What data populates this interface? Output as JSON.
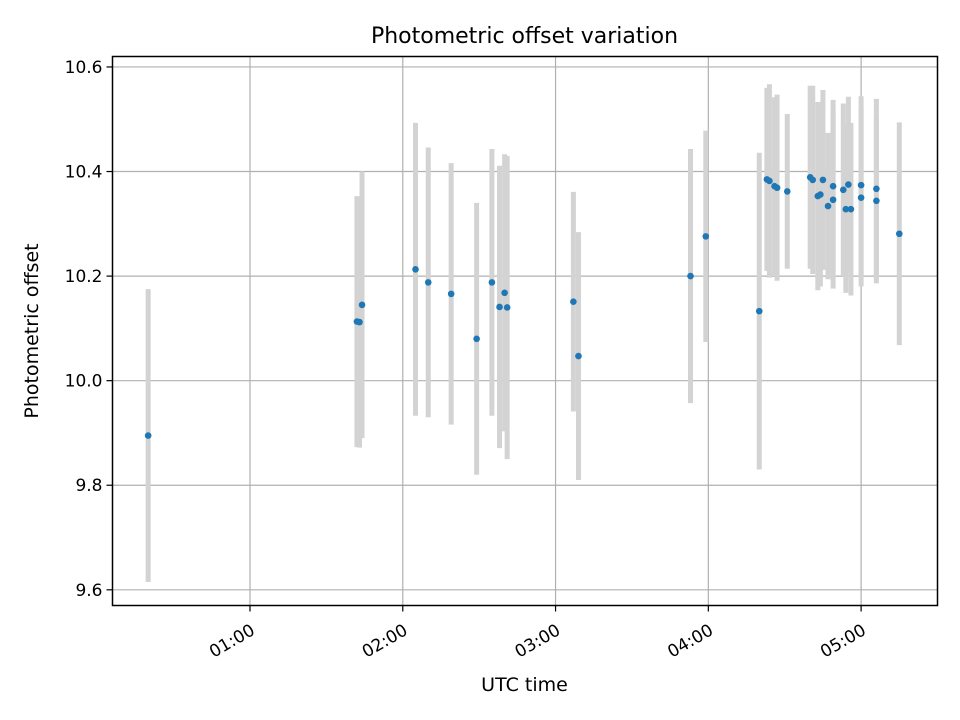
{
  "chart_data": {
    "type": "scatter",
    "title": "Photometric offset variation",
    "xlabel": "UTC time",
    "ylabel": "Photometric offset",
    "xlim": [
      "00:06",
      "05:30"
    ],
    "ylim": [
      9.57,
      10.62
    ],
    "grid": true,
    "x_ticks": [
      "01:00",
      "02:00",
      "03:00",
      "04:00",
      "05:00"
    ],
    "y_ticks": [
      9.6,
      9.8,
      10.0,
      10.2,
      10.4,
      10.6
    ],
    "colors": {
      "points": "#1f77b4",
      "error_bars": "#d3d3d3",
      "grid": "#b0b0b0"
    },
    "series": [
      {
        "points": [
          {
            "x": "00:20",
            "y": 9.895,
            "err": 0.28
          },
          {
            "x": "01:42",
            "y": 10.113,
            "err": 0.24
          },
          {
            "x": "01:43",
            "y": 10.112,
            "err": 0.24
          },
          {
            "x": "01:44",
            "y": 10.145,
            "err": 0.255
          },
          {
            "x": "02:05",
            "y": 10.213,
            "err": 0.28
          },
          {
            "x": "02:10",
            "y": 10.188,
            "err": 0.258
          },
          {
            "x": "02:19",
            "y": 10.166,
            "err": 0.25
          },
          {
            "x": "02:29",
            "y": 10.08,
            "err": 0.26
          },
          {
            "x": "02:35",
            "y": 10.188,
            "err": 0.255
          },
          {
            "x": "02:38",
            "y": 10.141,
            "err": 0.27
          },
          {
            "x": "02:40",
            "y": 10.168,
            "err": 0.265
          },
          {
            "x": "02:41",
            "y": 10.14,
            "err": 0.29
          },
          {
            "x": "03:07",
            "y": 10.151,
            "err": 0.21
          },
          {
            "x": "03:09",
            "y": 10.047,
            "err": 0.237
          },
          {
            "x": "03:53",
            "y": 10.2,
            "err": 0.243
          },
          {
            "x": "03:59",
            "y": 10.276,
            "err": 0.202
          },
          {
            "x": "04:20",
            "y": 10.133,
            "err": 0.303
          },
          {
            "x": "04:23",
            "y": 10.385,
            "err": 0.175
          },
          {
            "x": "04:24",
            "y": 10.382,
            "err": 0.185
          },
          {
            "x": "04:26",
            "y": 10.372,
            "err": 0.17
          },
          {
            "x": "04:27",
            "y": 10.369,
            "err": 0.178
          },
          {
            "x": "04:31",
            "y": 10.362,
            "err": 0.148
          },
          {
            "x": "04:40",
            "y": 10.389,
            "err": 0.175
          },
          {
            "x": "04:41",
            "y": 10.384,
            "err": 0.18
          },
          {
            "x": "04:43",
            "y": 10.353,
            "err": 0.18
          },
          {
            "x": "04:44",
            "y": 10.356,
            "err": 0.176
          },
          {
            "x": "04:45",
            "y": 10.384,
            "err": 0.172
          },
          {
            "x": "04:47",
            "y": 10.334,
            "err": 0.14
          },
          {
            "x": "04:49",
            "y": 10.372,
            "err": 0.165
          },
          {
            "x": "04:49",
            "y": 10.346,
            "err": 0.17
          },
          {
            "x": "04:53",
            "y": 10.365,
            "err": 0.165
          },
          {
            "x": "04:54",
            "y": 10.328,
            "err": 0.16
          },
          {
            "x": "04:55",
            "y": 10.375,
            "err": 0.168
          },
          {
            "x": "04:56",
            "y": 10.328,
            "err": 0.165
          },
          {
            "x": "05:00",
            "y": 10.374,
            "err": 0.17
          },
          {
            "x": "05:00",
            "y": 10.35,
            "err": 0.17
          },
          {
            "x": "05:06",
            "y": 10.344,
            "err": 0.158
          },
          {
            "x": "05:06",
            "y": 10.367,
            "err": 0.172
          },
          {
            "x": "05:15",
            "y": 10.281,
            "err": 0.213
          }
        ]
      }
    ]
  }
}
